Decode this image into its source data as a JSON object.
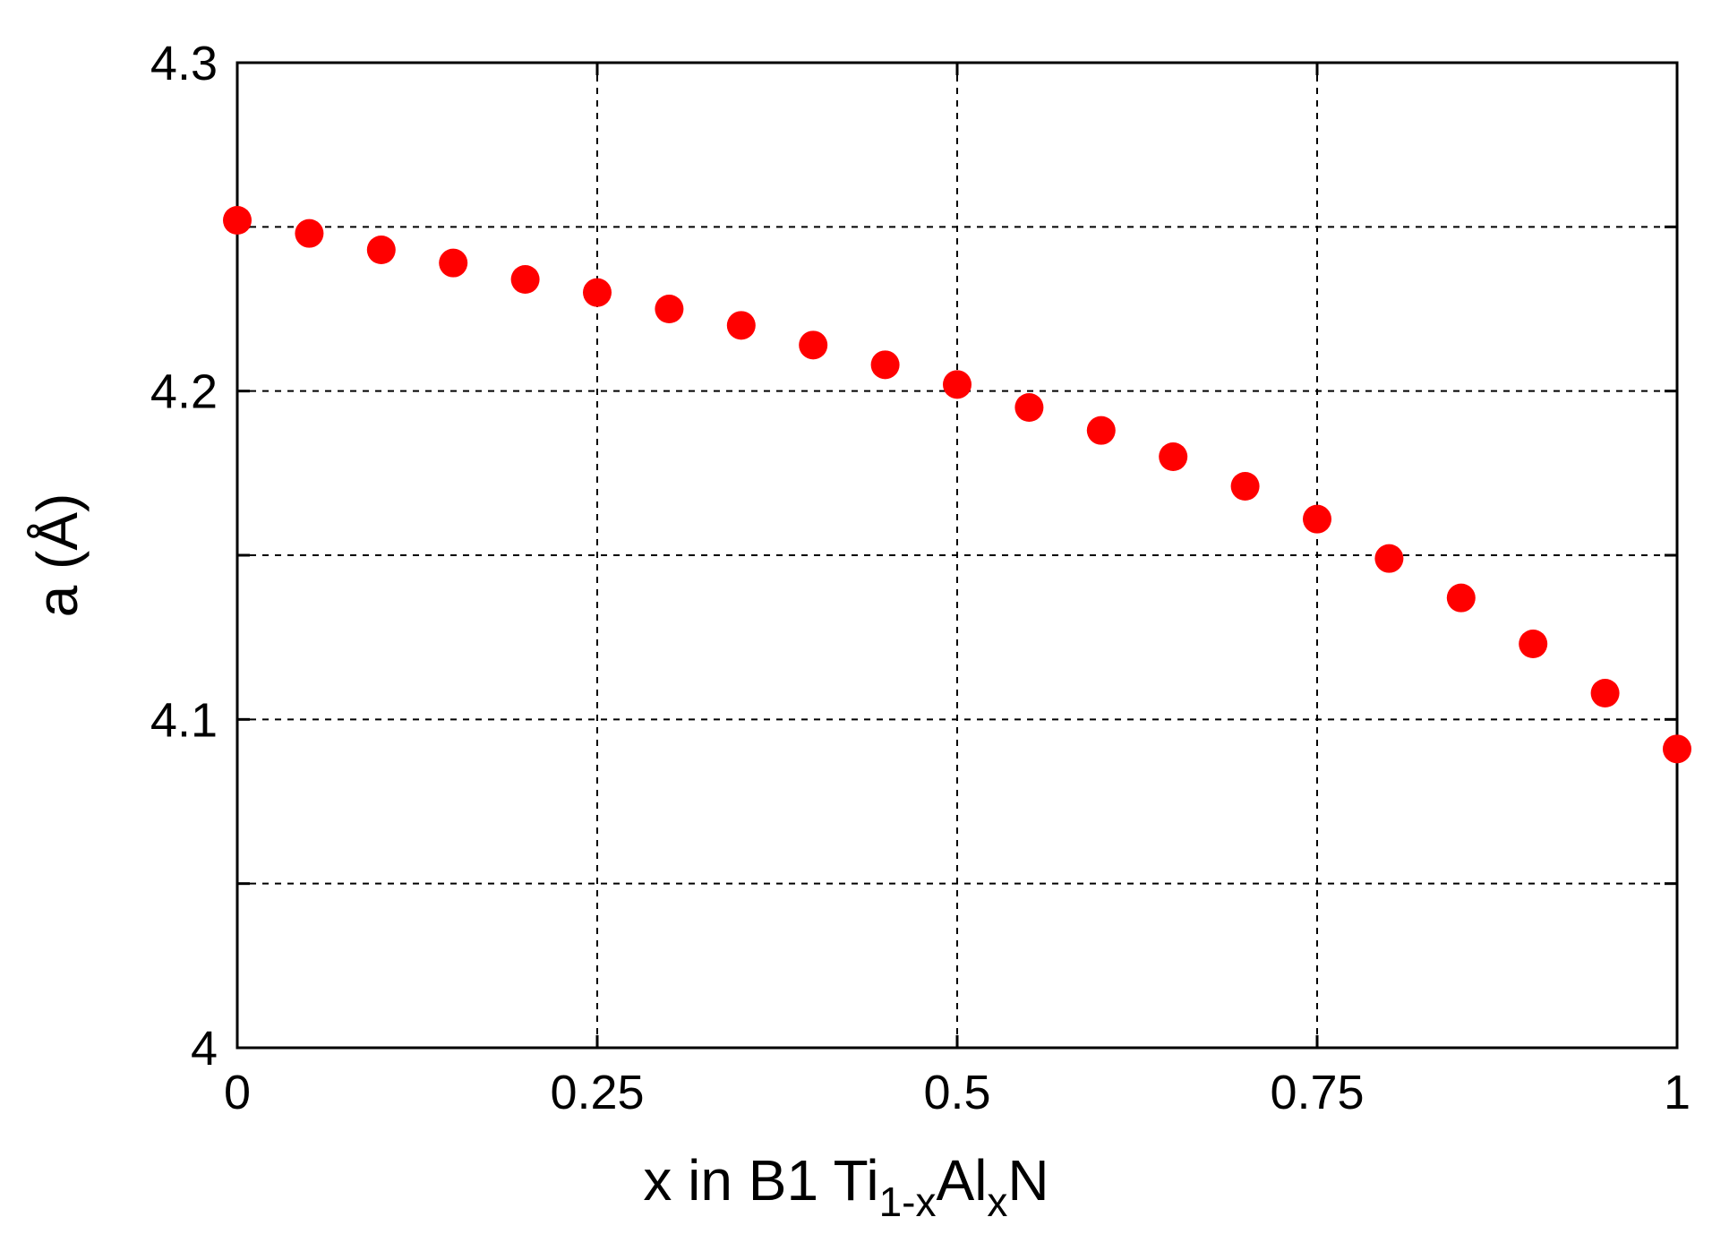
{
  "chart_data": {
    "type": "scatter",
    "xlabel": {
      "main": "x in B1 Ti",
      "sub1": "1-x",
      "mid": "Al",
      "sub2": "x",
      "tail": "N"
    },
    "ylabel": "a (Å)",
    "xlim": [
      0,
      1
    ],
    "ylim": [
      4.0,
      4.3
    ],
    "x_ticks": [
      {
        "value": 0,
        "label": "0"
      },
      {
        "value": 0.25,
        "label": "0.25"
      },
      {
        "value": 0.5,
        "label": "0.5"
      },
      {
        "value": 0.75,
        "label": "0.75"
      },
      {
        "value": 1,
        "label": "1"
      }
    ],
    "y_ticks": [
      {
        "value": 4.0,
        "label": "4"
      },
      {
        "value": 4.05,
        "label": ""
      },
      {
        "value": 4.1,
        "label": "4.1"
      },
      {
        "value": 4.15,
        "label": ""
      },
      {
        "value": 4.2,
        "label": "4.2"
      },
      {
        "value": 4.25,
        "label": ""
      },
      {
        "value": 4.3,
        "label": "4.3"
      }
    ],
    "grid": true,
    "marker_color": "#ff0000",
    "points": [
      {
        "x": 0.0,
        "y": 4.252
      },
      {
        "x": 0.05,
        "y": 4.248
      },
      {
        "x": 0.1,
        "y": 4.243
      },
      {
        "x": 0.15,
        "y": 4.239
      },
      {
        "x": 0.2,
        "y": 4.234
      },
      {
        "x": 0.25,
        "y": 4.23
      },
      {
        "x": 0.3,
        "y": 4.225
      },
      {
        "x": 0.35,
        "y": 4.22
      },
      {
        "x": 0.4,
        "y": 4.214
      },
      {
        "x": 0.45,
        "y": 4.208
      },
      {
        "x": 0.5,
        "y": 4.202
      },
      {
        "x": 0.55,
        "y": 4.195
      },
      {
        "x": 0.6,
        "y": 4.188
      },
      {
        "x": 0.65,
        "y": 4.18
      },
      {
        "x": 0.7,
        "y": 4.171
      },
      {
        "x": 0.75,
        "y": 4.161
      },
      {
        "x": 0.8,
        "y": 4.149
      },
      {
        "x": 0.85,
        "y": 4.137
      },
      {
        "x": 0.9,
        "y": 4.123
      },
      {
        "x": 0.95,
        "y": 4.108
      },
      {
        "x": 1.0,
        "y": 4.091
      }
    ]
  }
}
